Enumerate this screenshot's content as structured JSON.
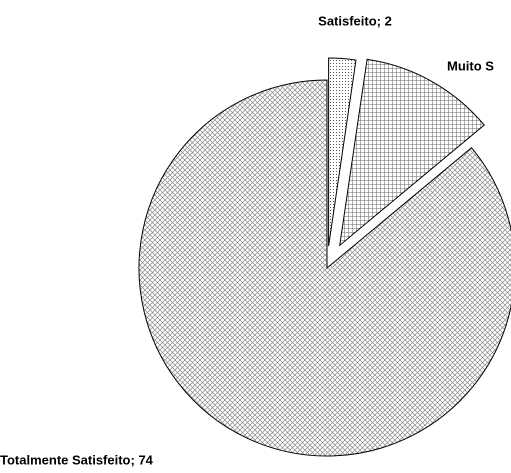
{
  "chart_data": {
    "type": "pie",
    "labels": [
      "Satisfeito; 2",
      "Muito S",
      "Totalmente Satisfeito; 74"
    ],
    "values": [
      2,
      10,
      74
    ],
    "color": "#000000"
  }
}
